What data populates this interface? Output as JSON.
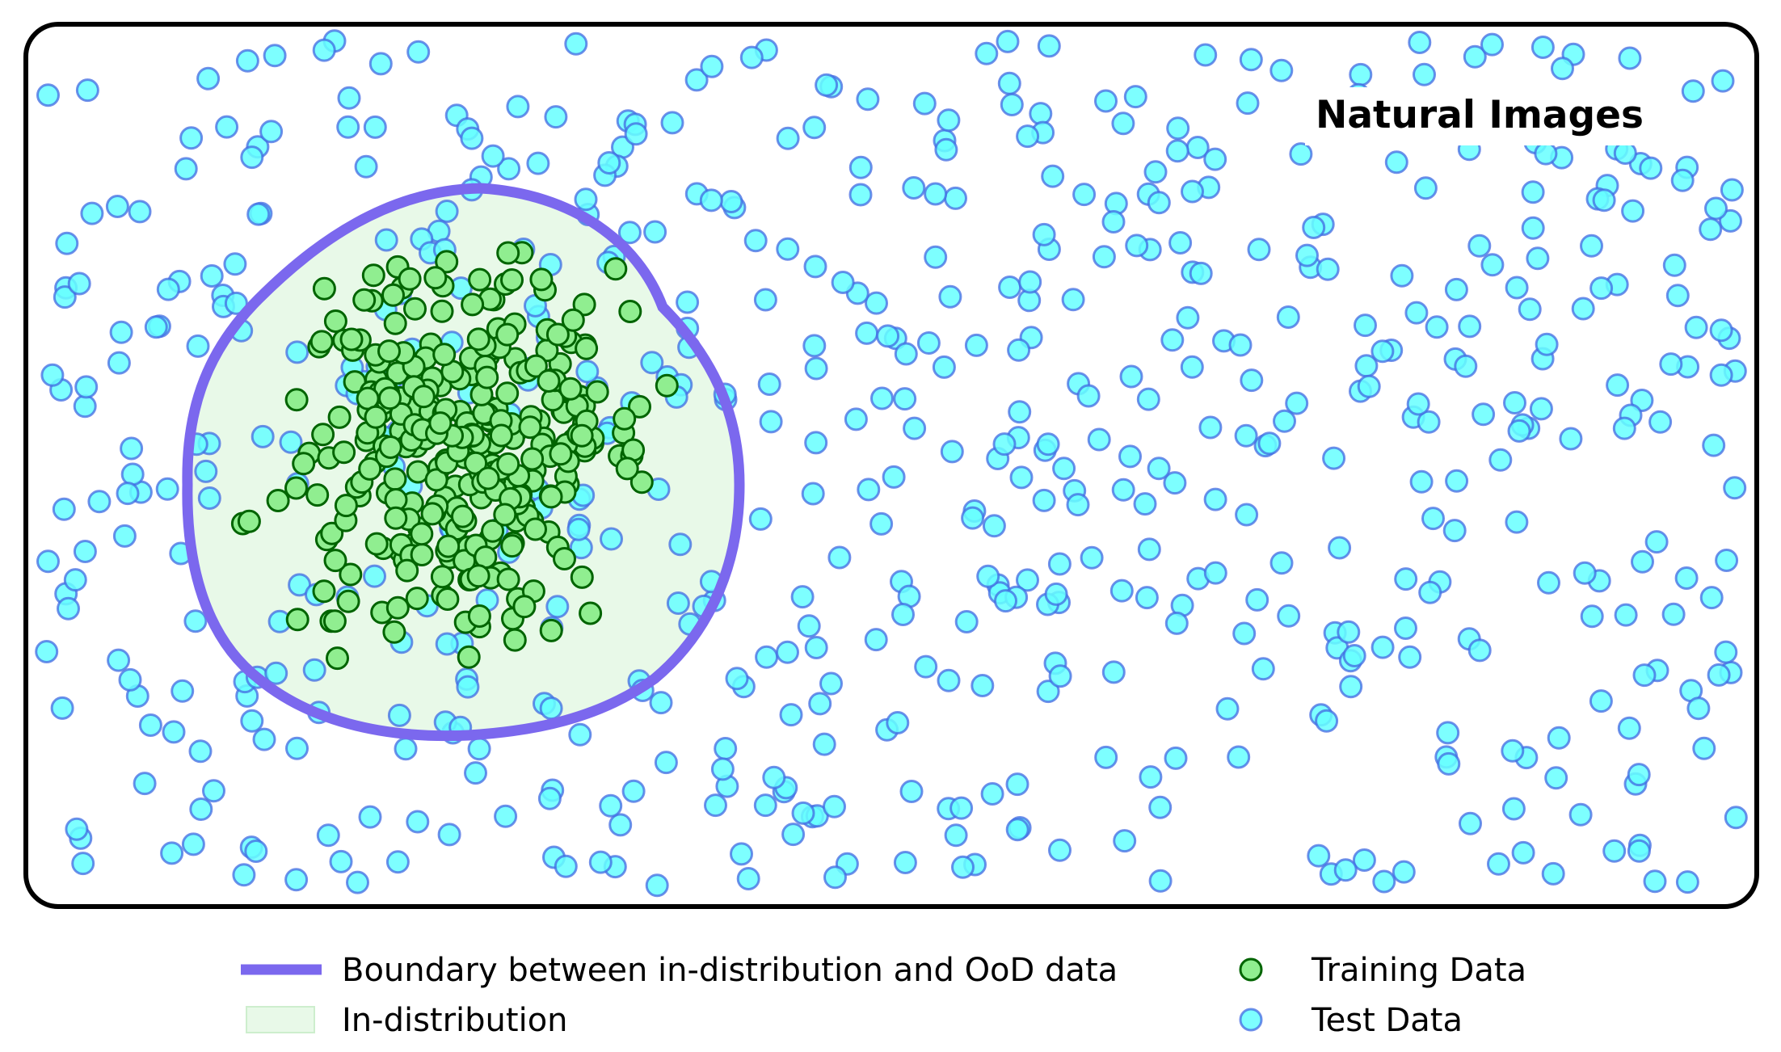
{
  "title": "Natural Images",
  "legend": {
    "boundary": "Boundary between in-distribution and OoD data",
    "in_distribution": "In-distribution",
    "training": "Training Data",
    "test": "Test Data"
  },
  "colors": {
    "boundary": "#7b68ee",
    "in_distribution_fill": "#e8f9e8",
    "training_fill": "#90ee90",
    "training_edge": "#006400",
    "test_fill": "#66ffff",
    "test_edge": "#4169e1",
    "frame": "#000000"
  },
  "chart_data": {
    "type": "scatter",
    "series": [
      {
        "name": "Training Data",
        "count": 330
      },
      {
        "name": "Test Data",
        "count": 620
      }
    ]
  }
}
